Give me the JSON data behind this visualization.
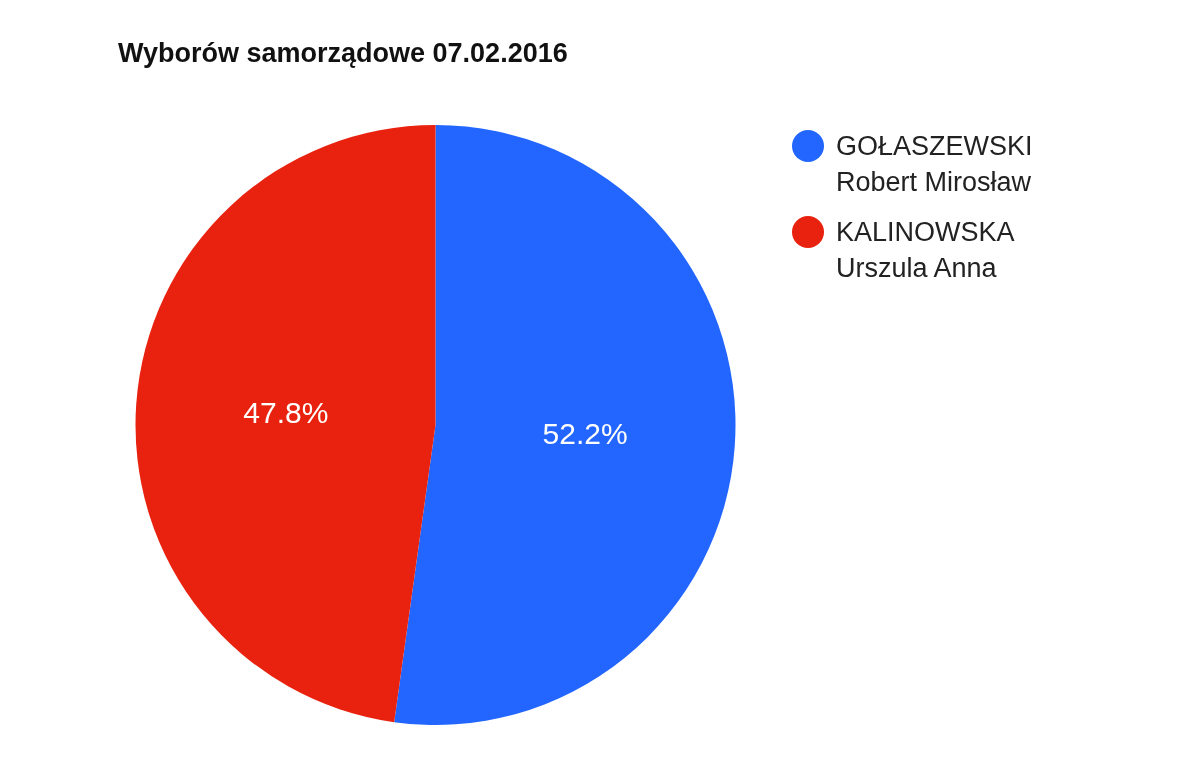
{
  "chart_data": {
    "type": "pie",
    "title": "Wyborów samorządowe 07.02.2016",
    "categories": [
      "GOŁASZEWSKI Robert Mirosław",
      "KALINOWSKA Urszula Anna"
    ],
    "values": [
      52.2,
      47.8
    ],
    "colors": [
      "#2266ff",
      "#e8220f"
    ],
    "value_labels": [
      "52.2%",
      "47.8%"
    ],
    "legend": "right"
  }
}
